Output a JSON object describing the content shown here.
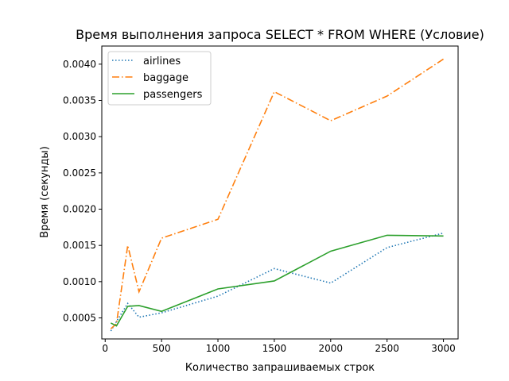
{
  "chart_data": {
    "type": "line",
    "title": "Время выполнения запроса SELECT * FROM WHERE (Условие)",
    "xlabel": "Количество запрашиваемых строк",
    "ylabel": "Время (секунды)",
    "xlim": [
      -30,
      3130
    ],
    "ylim": [
      0.00021,
      0.00425
    ],
    "xticks": [
      0,
      500,
      1000,
      1500,
      2000,
      2500,
      3000
    ],
    "xtick_labels": [
      "0",
      "500",
      "1000",
      "1500",
      "2000",
      "2500",
      "3000"
    ],
    "yticks": [
      0.0005,
      0.001,
      0.0015,
      0.002,
      0.0025,
      0.003,
      0.0035,
      0.004
    ],
    "ytick_labels": [
      "0.0005",
      "0.0010",
      "0.0015",
      "0.0020",
      "0.0025",
      "0.0030",
      "0.0035",
      "0.0040"
    ],
    "grid": false,
    "legend_position": "top-left",
    "x": [
      50,
      100,
      200,
      300,
      500,
      1000,
      1500,
      2000,
      2500,
      3000
    ],
    "series": [
      {
        "name": "airlines",
        "color": "#1f77b4",
        "linestyle": "dotted",
        "values": [
          0.00032,
          0.00045,
          0.0007,
          0.00051,
          0.00057,
          0.0008,
          0.00118,
          0.00098,
          0.00147,
          0.00167
        ]
      },
      {
        "name": "baggage",
        "color": "#ff7f0e",
        "linestyle": "dashdot",
        "values": [
          0.00035,
          0.00042,
          0.0015,
          0.00086,
          0.0016,
          0.00186,
          0.00362,
          0.00322,
          0.00356,
          0.00407
        ]
      },
      {
        "name": "passengers",
        "color": "#2ca02c",
        "linestyle": "solid",
        "values": [
          0.00043,
          0.00039,
          0.00066,
          0.00067,
          0.00059,
          0.0009,
          0.00101,
          0.00142,
          0.00164,
          0.00163
        ]
      }
    ]
  }
}
